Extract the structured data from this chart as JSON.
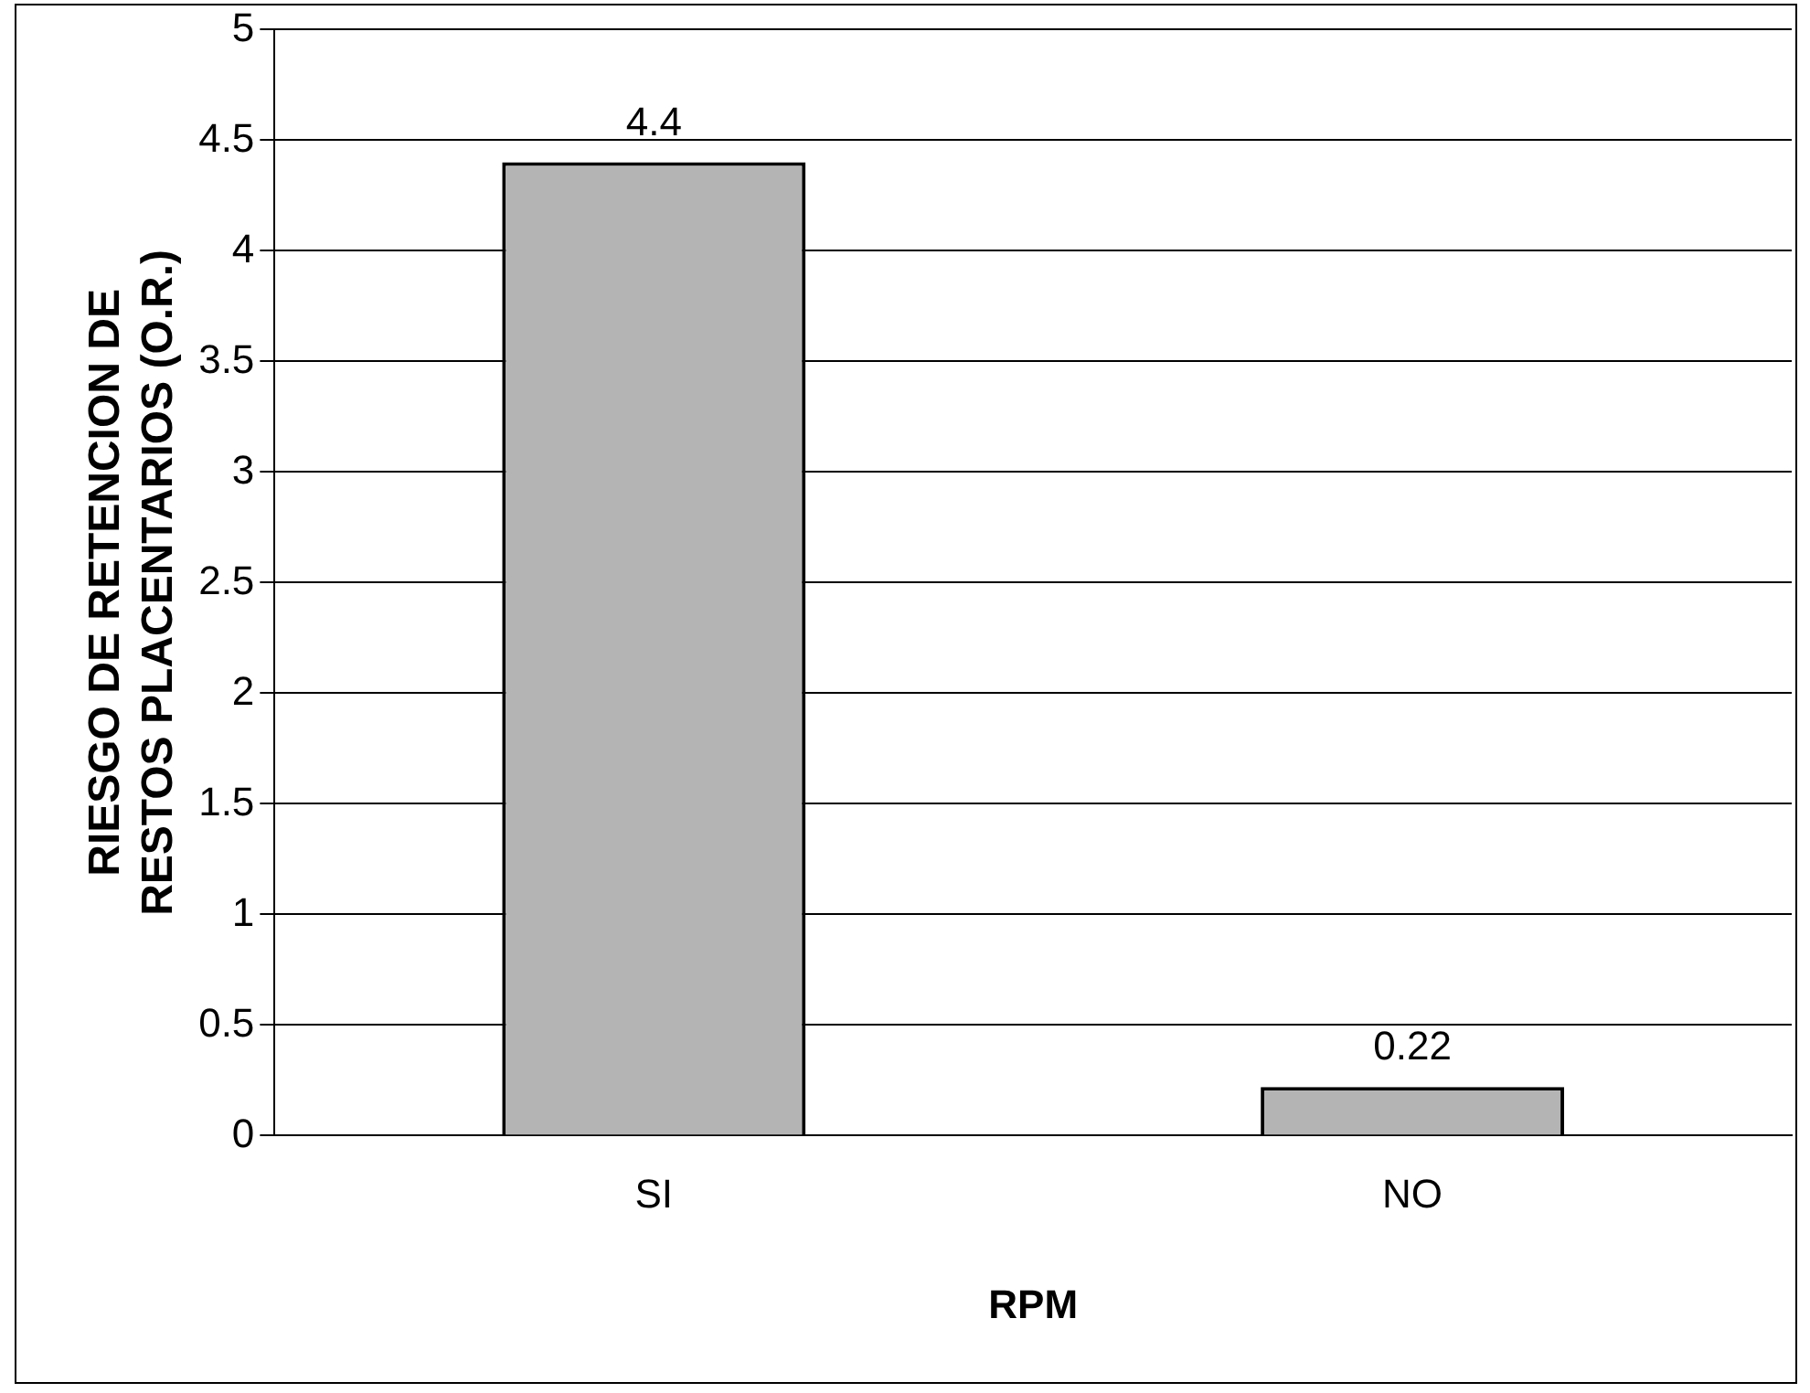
{
  "chart_data": {
    "type": "bar",
    "xlabel": "RPM",
    "ylabel": "RIESGO DE RETENCION DE RESTOS PLACENTARIOS (O.R.)",
    "categories": [
      "SI",
      "NO"
    ],
    "values": [
      4.4,
      0.22
    ],
    "color": "#b4b4b4",
    "ylim": [
      0,
      5
    ],
    "yticks": [
      0,
      0.5,
      1,
      1.5,
      2,
      2.5,
      3,
      3.5,
      4,
      4.5,
      5
    ],
    "grid": "y",
    "data_labels": true
  }
}
